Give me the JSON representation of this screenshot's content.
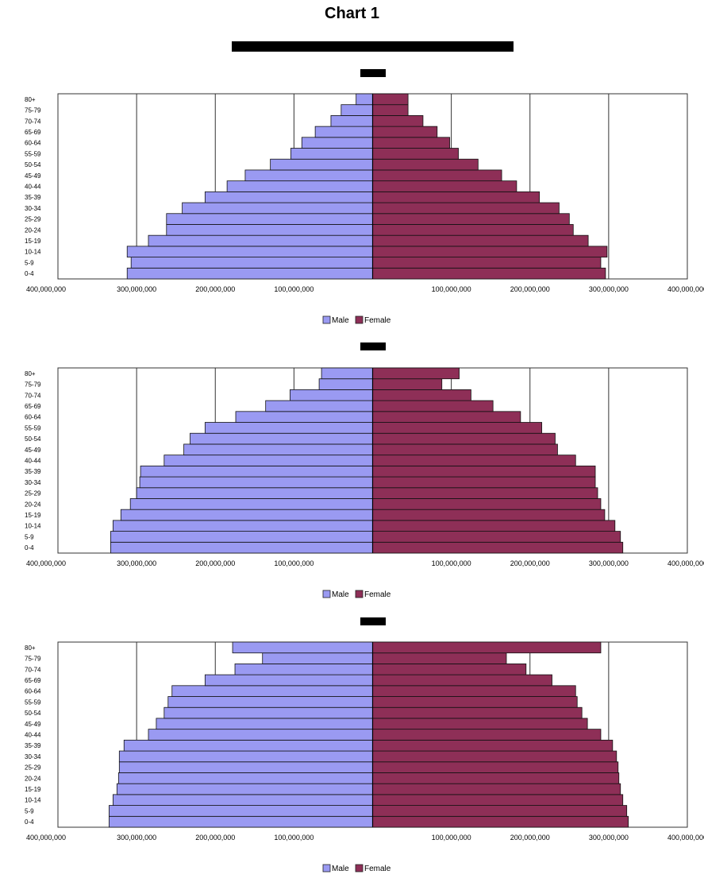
{
  "title": "Chart 1",
  "colors": {
    "male": "#9A9AF2",
    "female": "#8E2F57",
    "grid": "#333333",
    "bar_edge": "#111111"
  },
  "chart_data": [
    {
      "type": "bar",
      "orientation": "horizontal",
      "categories": [
        "0-4",
        "5-9",
        "10-14",
        "15-19",
        "20-24",
        "25-29",
        "30-34",
        "35-39",
        "40-44",
        "45-49",
        "50-54",
        "55-59",
        "60-64",
        "65-69",
        "70-74",
        "75-79",
        "80+"
      ],
      "series": [
        {
          "name": "Male",
          "values": [
            -312000000,
            -307000000,
            -312000000,
            -285000000,
            -262000000,
            -262000000,
            -242000000,
            -213000000,
            -185000000,
            -162000000,
            -130000000,
            -104000000,
            -90000000,
            -73000000,
            -53000000,
            -40000000,
            -21000000
          ]
        },
        {
          "name": "Female",
          "values": [
            296000000,
            290000000,
            298000000,
            274000000,
            255000000,
            250000000,
            237000000,
            212000000,
            183000000,
            164000000,
            134000000,
            109000000,
            98000000,
            82000000,
            64000000,
            45000000,
            45000000
          ]
        }
      ],
      "xlim": [
        -400000000,
        400000000
      ],
      "tick_labels": [
        "400,000,000",
        "300,000,000",
        "200,000,000",
        "100,000,000",
        "",
        "100,000,000",
        "200,000,000",
        "300,000,000",
        "400,000,000"
      ],
      "legend": [
        "Male",
        "Female"
      ],
      "legend_position": "bottom",
      "grid": true
    },
    {
      "type": "bar",
      "orientation": "horizontal",
      "categories": [
        "0-4",
        "5-9",
        "10-14",
        "15-19",
        "20-24",
        "25-29",
        "30-34",
        "35-39",
        "40-44",
        "45-49",
        "50-54",
        "55-59",
        "60-64",
        "65-69",
        "70-74",
        "75-79",
        "80+"
      ],
      "series": [
        {
          "name": "Male",
          "values": [
            -333000000,
            -333000000,
            -330000000,
            -320000000,
            -308000000,
            -300000000,
            -296000000,
            -295000000,
            -265000000,
            -240000000,
            -232000000,
            -213000000,
            -174000000,
            -136000000,
            -105000000,
            -68000000,
            -65000000
          ]
        },
        {
          "name": "Female",
          "values": [
            318000000,
            315000000,
            308000000,
            295000000,
            290000000,
            286000000,
            283000000,
            283000000,
            258000000,
            235000000,
            232000000,
            215000000,
            188000000,
            153000000,
            125000000,
            88000000,
            110000000
          ]
        }
      ],
      "xlim": [
        -400000000,
        400000000
      ],
      "tick_labels": [
        "400,000,000",
        "300,000,000",
        "200,000,000",
        "100,000,000",
        "",
        "100,000,000",
        "200,000,000",
        "300,000,000",
        "400,000,000"
      ],
      "legend": [
        "Male",
        "Female"
      ],
      "legend_position": "bottom",
      "grid": true
    },
    {
      "type": "bar",
      "orientation": "horizontal",
      "categories": [
        "0-4",
        "5-9",
        "10-14",
        "15-19",
        "20-24",
        "25-29",
        "30-34",
        "35-39",
        "40-44",
        "45-49",
        "50-54",
        "55-59",
        "60-64",
        "65-69",
        "70-74",
        "75-79",
        "80+"
      ],
      "series": [
        {
          "name": "Male",
          "values": [
            -335000000,
            -335000000,
            -330000000,
            -325000000,
            -323000000,
            -322000000,
            -322000000,
            -316000000,
            -285000000,
            -275000000,
            -265000000,
            -260000000,
            -255000000,
            -213000000,
            -175000000,
            -140000000,
            -178000000
          ]
        },
        {
          "name": "Female",
          "values": [
            325000000,
            323000000,
            318000000,
            315000000,
            313000000,
            312000000,
            310000000,
            305000000,
            290000000,
            273000000,
            266000000,
            260000000,
            258000000,
            228000000,
            195000000,
            170000000,
            290000000
          ]
        }
      ],
      "xlim": [
        -400000000,
        400000000
      ],
      "tick_labels": [
        "400,000,000",
        "300,000,000",
        "200,000,000",
        "100,000,000",
        "",
        "100,000,000",
        "200,000,000",
        "300,000,000",
        "400,000,000"
      ],
      "legend": [
        "Male",
        "Female"
      ],
      "legend_position": "bottom",
      "grid": true
    }
  ]
}
